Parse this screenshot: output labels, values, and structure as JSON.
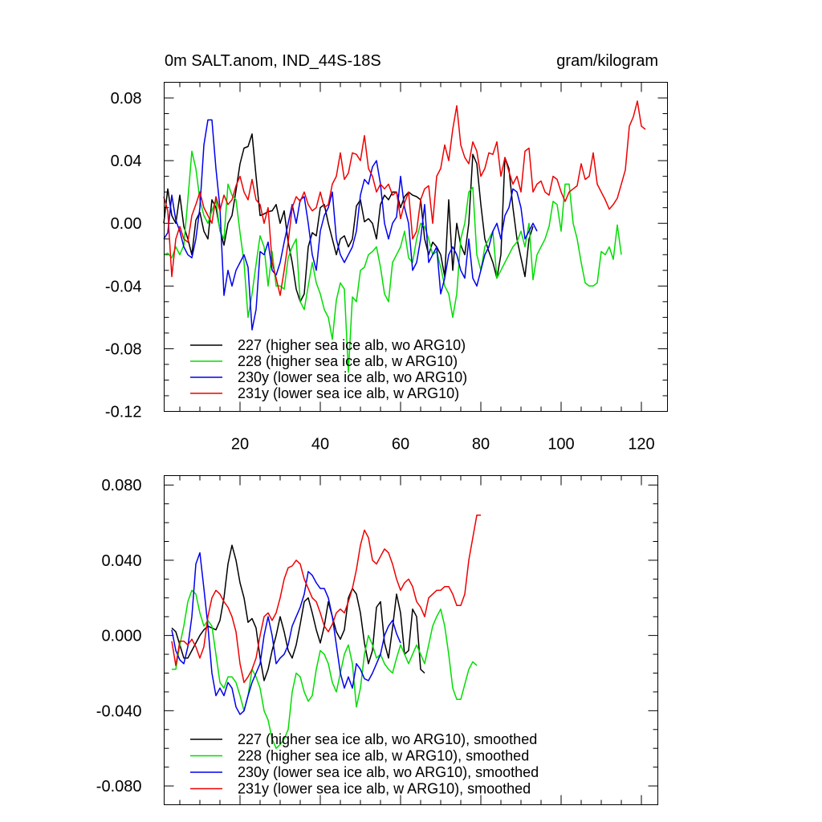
{
  "colors": {
    "s227": "#000000",
    "s228": "#00dd00",
    "s230": "#0000ee",
    "s231": "#ee0000"
  },
  "chart_data": [
    {
      "type": "line",
      "title_left": "0m SALT.anom, IND_44S-18S",
      "title_right": "gram/kilogram",
      "xlim": [
        1,
        124
      ],
      "ylim": [
        -0.12,
        0.09
      ],
      "xticks": [
        20,
        40,
        60,
        80,
        100,
        120
      ],
      "xtick_labels": [
        "20",
        "40",
        "60",
        "80",
        "100",
        "120"
      ],
      "yticks": [
        -0.12,
        -0.08,
        -0.04,
        0.0,
        0.04,
        0.08
      ],
      "ytick_labels": [
        "-0.12",
        "-0.08",
        "-0.04",
        "0.00",
        "0.04",
        "0.08"
      ],
      "legend_position": "lower-left",
      "series": [
        {
          "name": "227 (higher sea ice alb, wo ARG10)",
          "color_key": "s227",
          "start_x": 1,
          "values": [
            0.0,
            0.022,
            0.005,
            0.0,
            0.018,
            -0.002,
            -0.01,
            -0.02,
            0.002,
            0.007,
            -0.005,
            -0.01,
            0.015,
            0.01,
            -0.004,
            -0.014,
            0.0,
            0.005,
            0.021,
            0.038,
            0.048,
            0.049,
            0.057,
            0.03,
            0.005,
            0.006,
            0.0075,
            0.008,
            0.012,
            0.0,
            0.008,
            -0.012,
            -0.025,
            -0.042,
            -0.05,
            -0.045,
            -0.015,
            -0.006,
            -0.008,
            0.01,
            0.012,
            0.0,
            -0.01,
            -0.02,
            -0.01,
            -0.008,
            -0.015,
            -0.01,
            0.011,
            0.015,
            0.001,
            0.003,
            0.0,
            -0.01,
            0.012,
            0.018,
            0.015,
            0.02,
            0.02,
            0.01,
            0.017,
            0.02,
            0.018,
            0.017,
            0.015,
            -0.01,
            -0.02,
            -0.012,
            -0.015,
            -0.02,
            -0.034,
            0.015,
            -0.03,
            0.0,
            -0.014,
            -0.02,
            0.0,
            0.044,
            0.038,
            0.012,
            -0.01,
            -0.018,
            -0.025,
            -0.035,
            -0.02,
            0.042,
            0.035,
            0.01,
            -0.01,
            -0.022,
            -0.034,
            -0.01,
            -0.002
          ]
        },
        {
          "name": "228 (higher sea ice alb, w ARG10)",
          "color_key": "s228",
          "start_x": 1,
          "values": [
            -0.02,
            -0.019,
            -0.022,
            -0.015,
            -0.02,
            -0.014,
            0.015,
            0.046,
            0.035,
            0.015,
            0.005,
            0.0,
            0.008,
            0.015,
            -0.005,
            -0.01,
            0.025,
            0.018,
            0.015,
            -0.006,
            -0.025,
            -0.06,
            -0.045,
            -0.026,
            -0.008,
            -0.015,
            -0.04,
            -0.018,
            -0.04,
            -0.04,
            -0.042,
            -0.022,
            -0.015,
            -0.01,
            -0.05,
            -0.055,
            -0.04,
            -0.025,
            -0.038,
            -0.045,
            -0.055,
            -0.06,
            -0.074,
            -0.049,
            -0.038,
            -0.042,
            -0.095,
            -0.047,
            -0.05,
            -0.03,
            -0.028,
            -0.02,
            -0.018,
            -0.015,
            -0.028,
            -0.045,
            -0.05,
            -0.025,
            -0.02,
            -0.015,
            -0.005,
            -0.022,
            -0.025,
            -0.01,
            0.0,
            -0.002,
            -0.01,
            -0.02,
            -0.018,
            -0.028,
            -0.04,
            -0.045,
            -0.06,
            -0.045,
            -0.01,
            0.0,
            0.02,
            0.023,
            -0.02,
            -0.03,
            -0.015,
            -0.01,
            -0.005,
            -0.035,
            -0.03,
            -0.025,
            -0.02,
            -0.015,
            -0.012,
            -0.005,
            -0.015,
            0.0,
            -0.036,
            -0.02,
            -0.015,
            -0.01,
            -0.002,
            0.014,
            0.012,
            -0.005,
            0.025,
            0.025,
            0.0,
            -0.01,
            -0.025,
            -0.038,
            -0.04,
            -0.04,
            -0.038,
            -0.018,
            -0.02,
            -0.015,
            -0.023,
            -0.001,
            -0.02
          ]
        },
        {
          "name": "230y (lower sea ice alb, wo ARG10)",
          "color_key": "s230",
          "start_x": 1,
          "values": [
            -0.01,
            -0.006,
            0.018,
            0.002,
            -0.005,
            -0.015,
            -0.02,
            -0.022,
            -0.01,
            0.01,
            0.05,
            0.066,
            0.066,
            0.035,
            0.01,
            -0.046,
            -0.03,
            -0.04,
            -0.03,
            -0.025,
            -0.02,
            -0.028,
            -0.068,
            -0.055,
            -0.018,
            -0.02,
            -0.012,
            -0.03,
            -0.033,
            -0.025,
            -0.012,
            0.0,
            0.012,
            0.0,
            0.015,
            0.017,
            0.0,
            -0.02,
            -0.03,
            -0.005,
            0.005,
            0.01,
            0.02,
            -0.01,
            -0.02,
            -0.025,
            -0.02,
            -0.015,
            -0.005,
            0.018,
            0.028,
            0.025,
            0.036,
            0.04,
            0.025,
            0.0,
            -0.01,
            0.0,
            0.004,
            0.03,
            0.01,
            0.0,
            -0.03,
            -0.025,
            -0.01,
            0.012,
            -0.025,
            -0.02,
            -0.015,
            -0.045,
            -0.035,
            -0.02,
            -0.015,
            -0.02,
            -0.03,
            -0.035,
            -0.01,
            -0.035,
            -0.04,
            -0.03,
            -0.02,
            -0.015,
            -0.005,
            0.0,
            -0.01,
            0.005,
            0.01,
            0.022,
            0.02,
            0.01,
            -0.01,
            -0.005,
            0.0,
            -0.005
          ]
        },
        {
          "name": "231y (lower sea ice alb, w ARG10)",
          "color_key": "s231",
          "start_x": 1,
          "values": [
            0.017,
            0.008,
            -0.034,
            -0.01,
            -0.002,
            -0.01,
            -0.012,
            0.005,
            0.012,
            0.02,
            0.01,
            0.005,
            0.0,
            0.017,
            0.008,
            0.018,
            0.012,
            0.015,
            0.024,
            0.03,
            0.02,
            0.015,
            0.028,
            0.015,
            0.012,
            0.0,
            0.01,
            -0.025,
            -0.035,
            -0.046,
            -0.03,
            -0.012,
            0.01,
            0.017,
            0.014,
            0.02,
            0.012,
            0.008,
            0.01,
            0.02,
            0.01,
            0.012,
            0.025,
            0.03,
            0.045,
            0.028,
            0.032,
            0.045,
            0.044,
            0.04,
            0.056,
            0.035,
            0.03,
            0.02,
            0.025,
            0.022,
            0.025,
            0.018,
            0.02,
            0.003,
            0.013,
            0.02,
            -0.01,
            -0.005,
            0.015,
            0.022,
            0.024,
            0.0,
            0.03,
            0.035,
            0.05,
            0.04,
            0.06,
            0.075,
            0.05,
            0.042,
            0.038,
            0.052,
            0.046,
            0.03,
            0.035,
            0.045,
            0.044,
            0.052,
            0.03,
            0.042,
            0.033,
            0.025,
            0.03,
            0.02,
            0.046,
            0.048,
            0.02,
            0.025,
            0.027,
            0.02,
            0.018,
            0.03,
            0.028,
            0.02,
            0.014,
            0.02,
            0.022,
            0.024,
            0.038,
            0.028,
            0.03,
            0.045,
            0.025,
            0.02,
            0.015,
            0.009,
            0.012,
            0.016,
            0.025,
            0.034,
            0.062,
            0.068,
            0.078,
            0.062,
            0.06
          ]
        }
      ]
    },
    {
      "type": "line",
      "xlim": [
        1,
        124
      ],
      "ylim": [
        -0.09,
        0.085
      ],
      "xticks": [
        20,
        40,
        60,
        80,
        100,
        120
      ],
      "yticks": [
        -0.08,
        -0.04,
        0.0,
        0.04,
        0.08
      ],
      "ytick_labels": [
        "-0.080",
        "-0.040",
        "0.000",
        "0.040",
        "0.080"
      ],
      "legend_position": "lower-left",
      "series": [
        {
          "name": "227 (higher sea ice alb, wo ARG10), smoothed",
          "color_key": "s227",
          "start_x": 3,
          "values": [
            0.004,
            0.002,
            -0.005,
            -0.012,
            -0.012,
            -0.008,
            -0.004,
            0.0,
            0.003,
            0.005,
            0.004,
            0.003,
            0.008,
            0.02,
            0.038,
            0.048,
            0.04,
            0.028,
            0.02,
            0.007,
            0.009,
            0.004,
            -0.012,
            -0.024,
            -0.018,
            -0.008,
            0.0,
            0.01,
            0.002,
            -0.008,
            -0.012,
            -0.005,
            0.006,
            0.018,
            0.02,
            0.012,
            0.003,
            -0.004,
            0.005,
            0.018,
            0.01,
            0.002,
            -0.002,
            0.003,
            0.02,
            0.025,
            0.022,
            0.012,
            -0.004,
            -0.015,
            -0.008,
            0.015,
            0.018,
            -0.004,
            -0.012,
            0.004,
            0.022,
            0.012,
            -0.01,
            -0.008,
            0.014,
            0.01,
            -0.018,
            -0.02
          ]
        },
        {
          "name": "228 (higher sea ice alb, w ARG10), smoothed",
          "color_key": "s228",
          "start_x": 3,
          "values": [
            -0.018,
            -0.018,
            -0.005,
            0.005,
            0.018,
            0.024,
            0.022,
            0.012,
            0.005,
            0.008,
            0.005,
            -0.01,
            -0.025,
            -0.028,
            -0.022,
            -0.022,
            -0.025,
            -0.032,
            -0.04,
            -0.032,
            -0.018,
            -0.022,
            -0.028,
            -0.04,
            -0.045,
            -0.055,
            -0.06,
            -0.058,
            -0.055,
            -0.05,
            -0.03,
            -0.02,
            -0.022,
            -0.03,
            -0.035,
            -0.032,
            -0.018,
            -0.008,
            -0.01,
            -0.015,
            -0.025,
            -0.03,
            -0.02,
            -0.01,
            -0.005,
            -0.015,
            -0.038,
            -0.028,
            -0.01,
            0.0,
            -0.005,
            -0.012,
            -0.01,
            -0.015,
            -0.018,
            -0.02,
            -0.012,
            -0.005,
            -0.01,
            -0.015,
            -0.01,
            -0.005,
            -0.01,
            -0.015,
            -0.005,
            0.005,
            0.01,
            0.014,
            0.005,
            -0.01,
            -0.028,
            -0.034,
            -0.034,
            -0.026,
            -0.018,
            -0.014,
            -0.016
          ]
        },
        {
          "name": "230y (lower sea ice alb, wo ARG10), smoothed",
          "color_key": "s230",
          "start_x": 3,
          "values": [
            0.003,
            -0.008,
            -0.013,
            -0.015,
            -0.006,
            0.01,
            0.038,
            0.044,
            0.025,
            0.005,
            -0.02,
            -0.032,
            -0.028,
            -0.032,
            -0.025,
            -0.028,
            -0.038,
            -0.042,
            -0.04,
            -0.032,
            -0.025,
            -0.02,
            -0.015,
            0.0,
            0.01,
            0.0,
            -0.015,
            -0.012,
            -0.01,
            -0.005,
            0.005,
            0.01,
            0.015,
            0.022,
            0.034,
            0.032,
            0.028,
            0.025,
            0.025,
            0.02,
            0.01,
            -0.005,
            -0.02,
            -0.028,
            -0.022,
            -0.028,
            -0.015,
            -0.018,
            -0.023,
            -0.024,
            -0.02,
            -0.015,
            -0.01,
            0.0,
            0.005,
            0.008,
            0.001,
            -0.004
          ]
        },
        {
          "name": "231y (lower sea ice alb, w ARG10), smoothed",
          "color_key": "s231",
          "start_x": 3,
          "values": [
            -0.003,
            -0.016,
            -0.003,
            -0.003,
            -0.005,
            -0.002,
            -0.006,
            -0.012,
            -0.006,
            0.01,
            0.02,
            0.024,
            0.022,
            0.018,
            0.015,
            0.01,
            0.002,
            -0.015,
            -0.025,
            -0.022,
            -0.018,
            -0.012,
            0.0,
            0.01,
            0.012,
            0.008,
            0.012,
            0.02,
            0.03,
            0.036,
            0.037,
            0.04,
            0.038,
            0.03,
            0.025,
            0.02,
            0.018,
            0.012,
            0.005,
            0.002,
            0.006,
            0.012,
            0.014,
            0.012,
            0.018,
            0.025,
            0.035,
            0.048,
            0.056,
            0.052,
            0.04,
            0.038,
            0.042,
            0.046,
            0.044,
            0.038,
            0.03,
            0.024,
            0.028,
            0.03,
            0.026,
            0.018,
            0.015,
            0.01,
            0.02,
            0.022,
            0.024,
            0.024,
            0.026,
            0.026,
            0.022,
            0.016,
            0.016,
            0.022,
            0.04,
            0.052,
            0.064,
            0.064
          ]
        }
      ]
    }
  ]
}
